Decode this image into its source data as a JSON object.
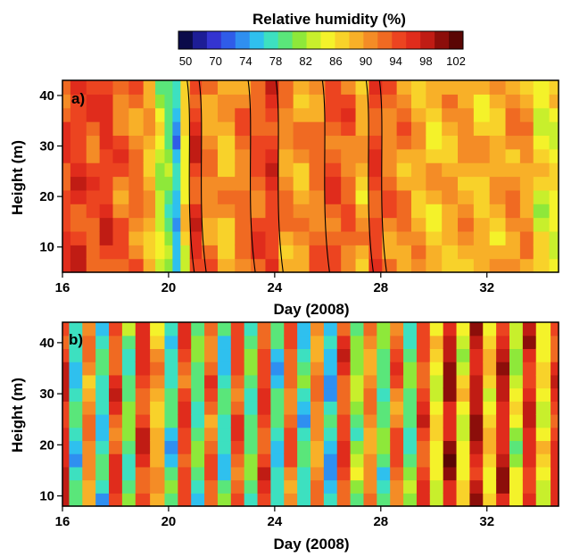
{
  "colorbar": {
    "title": "Relative humidity (%)",
    "ticks": [
      "50",
      "70",
      "74",
      "78",
      "82",
      "86",
      "90",
      "94",
      "98",
      "102"
    ],
    "colors": [
      "#0b0b4a",
      "#1d1d96",
      "#3434d0",
      "#2f5ce8",
      "#2f8ff0",
      "#2fc0ee",
      "#3de0c0",
      "#5ae67a",
      "#8ee83a",
      "#c8ef2c",
      "#f4f22a",
      "#f8d22a",
      "#f8b028",
      "#f48c26",
      "#f06a22",
      "#ec4420",
      "#e02c1c",
      "#c01c14",
      "#8c0e0a",
      "#5a0604"
    ]
  },
  "chart_data": [
    {
      "type": "heatmap",
      "panel": "a)",
      "xlabel": "Day (2008)",
      "ylabel": "Height (m)",
      "xlim": [
        16,
        34.7
      ],
      "ylim": [
        5,
        43
      ],
      "xticks": [
        "16",
        "20",
        "24",
        "28",
        "32"
      ],
      "xtick_values": [
        16,
        20,
        24,
        28,
        32
      ],
      "yticks": [
        "10",
        "20",
        "30",
        "40"
      ],
      "ytick_values": [
        10,
        20,
        30,
        40
      ],
      "colorscale_label": "Relative humidity (%)",
      "humidity_by_day": [
        {
          "x": 16.0,
          "rh": 96
        },
        {
          "x": 16.6,
          "rh": 97
        },
        {
          "x": 17.2,
          "rh": 95
        },
        {
          "x": 17.6,
          "rh": 97
        },
        {
          "x": 18.2,
          "rh": 94
        },
        {
          "x": 18.8,
          "rh": 93
        },
        {
          "x": 19.3,
          "rh": 90
        },
        {
          "x": 19.7,
          "rh": 84
        },
        {
          "x": 20.0,
          "rh": 81
        },
        {
          "x": 20.3,
          "rh": 76
        },
        {
          "x": 20.6,
          "rh": 87
        },
        {
          "x": 21.0,
          "rh": 97
        },
        {
          "x": 21.5,
          "rh": 92
        },
        {
          "x": 22.2,
          "rh": 90
        },
        {
          "x": 22.8,
          "rh": 93
        },
        {
          "x": 23.4,
          "rh": 95
        },
        {
          "x": 23.9,
          "rh": 97
        },
        {
          "x": 24.4,
          "rh": 92
        },
        {
          "x": 25.0,
          "rh": 91
        },
        {
          "x": 25.6,
          "rh": 93
        },
        {
          "x": 26.2,
          "rh": 95
        },
        {
          "x": 26.8,
          "rh": 94
        },
        {
          "x": 27.3,
          "rh": 90
        },
        {
          "x": 27.8,
          "rh": 96
        },
        {
          "x": 28.3,
          "rh": 93
        },
        {
          "x": 28.9,
          "rh": 92
        },
        {
          "x": 29.4,
          "rh": 90
        },
        {
          "x": 30.0,
          "rh": 89
        },
        {
          "x": 30.6,
          "rh": 90
        },
        {
          "x": 31.2,
          "rh": 91
        },
        {
          "x": 31.8,
          "rh": 89
        },
        {
          "x": 32.4,
          "rh": 90
        },
        {
          "x": 33.0,
          "rh": 92
        },
        {
          "x": 33.5,
          "rh": 91
        },
        {
          "x": 34.0,
          "rh": 86
        },
        {
          "x": 34.7,
          "rh": 86
        }
      ]
    },
    {
      "type": "heatmap",
      "panel": "b)",
      "xlabel": "Day (2008)",
      "ylabel": "Height (m)",
      "xlim": [
        16,
        34.7
      ],
      "ylim": [
        8,
        44
      ],
      "xticks": [
        "16",
        "20",
        "24",
        "28",
        "32"
      ],
      "xtick_values": [
        16,
        20,
        24,
        28,
        32
      ],
      "yticks": [
        "10",
        "20",
        "30",
        "40"
      ],
      "ytick_values": [
        10,
        20,
        30,
        40
      ],
      "colorscale_label": "Relative humidity (%)",
      "humidity_by_day": [
        {
          "x": 16.0,
          "rh": 98
        },
        {
          "x": 16.5,
          "rh": 78
        },
        {
          "x": 17.0,
          "rh": 92
        },
        {
          "x": 17.5,
          "rh": 78
        },
        {
          "x": 18.0,
          "rh": 96
        },
        {
          "x": 18.5,
          "rh": 80
        },
        {
          "x": 19.0,
          "rh": 97
        },
        {
          "x": 19.6,
          "rh": 90
        },
        {
          "x": 20.1,
          "rh": 78
        },
        {
          "x": 20.6,
          "rh": 96
        },
        {
          "x": 21.1,
          "rh": 80
        },
        {
          "x": 21.6,
          "rh": 94
        },
        {
          "x": 22.1,
          "rh": 78
        },
        {
          "x": 22.6,
          "rh": 95
        },
        {
          "x": 23.1,
          "rh": 80
        },
        {
          "x": 23.6,
          "rh": 96
        },
        {
          "x": 24.1,
          "rh": 78
        },
        {
          "x": 24.6,
          "rh": 94
        },
        {
          "x": 25.1,
          "rh": 78
        },
        {
          "x": 25.6,
          "rh": 92
        },
        {
          "x": 26.1,
          "rh": 76
        },
        {
          "x": 26.6,
          "rh": 96
        },
        {
          "x": 27.1,
          "rh": 82
        },
        {
          "x": 27.6,
          "rh": 92
        },
        {
          "x": 28.1,
          "rh": 80
        },
        {
          "x": 28.6,
          "rh": 94
        },
        {
          "x": 29.1,
          "rh": 80
        },
        {
          "x": 29.6,
          "rh": 96
        },
        {
          "x": 30.1,
          "rh": 86
        },
        {
          "x": 30.6,
          "rh": 100
        },
        {
          "x": 31.1,
          "rh": 86
        },
        {
          "x": 31.6,
          "rh": 100
        },
        {
          "x": 32.1,
          "rh": 88
        },
        {
          "x": 32.6,
          "rh": 99
        },
        {
          "x": 33.1,
          "rh": 84
        },
        {
          "x": 33.6,
          "rh": 98
        },
        {
          "x": 34.1,
          "rh": 86
        },
        {
          "x": 34.7,
          "rh": 97
        }
      ]
    }
  ]
}
